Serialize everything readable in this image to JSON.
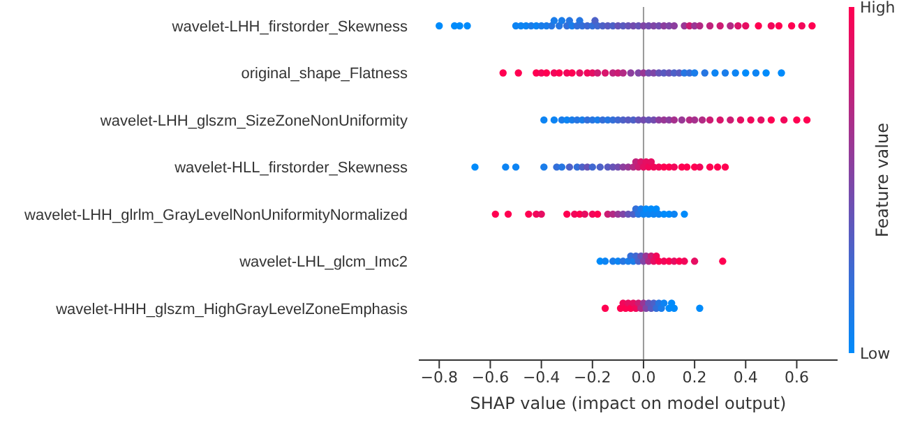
{
  "chart_data": {
    "type": "scatter",
    "orientation": "horizontal",
    "xlabel": "SHAP value (impact on model output)",
    "clabel": "Feature value",
    "categories": [
      "wavelet-LHH_firstorder_Skewness",
      "original_shape_Flatness",
      "wavelet-LHH_glszm_SizeZoneNonUniformity",
      "wavelet-HLL_firstorder_Skewness",
      "wavelet-LHH_glrlm_GrayLevelNonUniformityNormalized",
      "wavelet-LHL_glcm_Imc2",
      "wavelet-HHH_glszm_HighGrayLevelZoneEmphasis"
    ],
    "xlim": [
      -0.88,
      0.76
    ],
    "xticks": [
      {
        "value": -0.8,
        "label": "−0.8"
      },
      {
        "value": -0.6,
        "label": "−0.6"
      },
      {
        "value": -0.4,
        "label": "−0.4"
      },
      {
        "value": -0.2,
        "label": "−0.2"
      },
      {
        "value": 0,
        "label": "0.0"
      },
      0.2,
      0.4,
      0.6
    ],
    "clim": [
      0,
      1
    ],
    "cticks": [
      {
        "value": 0,
        "label": "Low"
      },
      {
        "value": 1,
        "label": "High"
      }
    ],
    "ref_lines": [
      {
        "axis": "x",
        "value": 0,
        "color": "#999999"
      }
    ],
    "series": [
      {
        "x": [
          "wavelet-LHH_firstorder_Skewness",
          "wavelet-LHH_firstorder_Skewness",
          "wavelet-LHH_firstorder_Skewness",
          "wavelet-LHH_firstorder_Skewness",
          "wavelet-LHH_firstorder_Skewness",
          "wavelet-LHH_firstorder_Skewness",
          "wavelet-LHH_firstorder_Skewness",
          "wavelet-LHH_firstorder_Skewness",
          "wavelet-LHH_firstorder_Skewness",
          "wavelet-LHH_firstorder_Skewness",
          "wavelet-LHH_firstorder_Skewness",
          "wavelet-LHH_firstorder_Skewness",
          "wavelet-LHH_firstorder_Skewness",
          "wavelet-LHH_firstorder_Skewness",
          "wavelet-LHH_firstorder_Skewness",
          "wavelet-LHH_firstorder_Skewness",
          "wavelet-LHH_firstorder_Skewness",
          "wavelet-LHH_firstorder_Skewness",
          "wavelet-LHH_firstorder_Skewness",
          "wavelet-LHH_firstorder_Skewness",
          "wavelet-LHH_firstorder_Skewness",
          "wavelet-LHH_firstorder_Skewness",
          "wavelet-LHH_firstorder_Skewness",
          "wavelet-LHH_firstorder_Skewness",
          "wavelet-LHH_firstorder_Skewness",
          "wavelet-LHH_firstorder_Skewness",
          "wavelet-LHH_firstorder_Skewness",
          "wavelet-LHH_firstorder_Skewness",
          "wavelet-LHH_firstorder_Skewness",
          "wavelet-LHH_firstorder_Skewness",
          "wavelet-LHH_firstorder_Skewness",
          "wavelet-LHH_firstorder_Skewness",
          "wavelet-LHH_firstorder_Skewness",
          "wavelet-LHH_firstorder_Skewness",
          "wavelet-LHH_firstorder_Skewness",
          "wavelet-LHH_firstorder_Skewness",
          "wavelet-LHH_firstorder_Skewness",
          "wavelet-LHH_firstorder_Skewness",
          "wavelet-LHH_firstorder_Skewness",
          "wavelet-LHH_firstorder_Skewness",
          "wavelet-LHH_firstorder_Skewness",
          "wavelet-LHH_firstorder_Skewness",
          "wavelet-LHH_firstorder_Skewness",
          "wavelet-LHH_firstorder_Skewness",
          "wavelet-LHH_firstorder_Skewness",
          "wavelet-LHH_firstorder_Skewness",
          "wavelet-LHH_firstorder_Skewness",
          "wavelet-LHH_firstorder_Skewness",
          "wavelet-LHH_firstorder_Skewness",
          "wavelet-LHH_firstorder_Skewness",
          "wavelet-LHH_firstorder_Skewness",
          "wavelet-LHH_firstorder_Skewness",
          "wavelet-LHH_firstorder_Skewness",
          "wavelet-LHH_firstorder_Skewness",
          "wavelet-LHH_firstorder_Skewness"
        ],
        "values": [
          -0.8,
          -0.74,
          -0.72,
          -0.69,
          -0.5,
          -0.48,
          -0.46,
          -0.44,
          -0.42,
          -0.4,
          -0.38,
          -0.36,
          -0.35,
          -0.33,
          -0.32,
          -0.3,
          -0.29,
          -0.28,
          -0.26,
          -0.25,
          -0.24,
          -0.22,
          -0.2,
          -0.19,
          -0.18,
          -0.16,
          -0.14,
          -0.12,
          -0.1,
          -0.08,
          -0.06,
          -0.04,
          -0.02,
          0,
          0.02,
          0.04,
          0.06,
          0.08,
          0.1,
          0.12,
          0.16,
          0.18,
          0.2,
          0.22,
          0.26,
          0.3,
          0.34,
          0.37,
          0.4,
          0.45,
          0.5,
          0.53,
          0.58,
          0.62,
          0.66
        ],
        "colors": [
          "#008bfb",
          "#008bfb",
          "#008bfb",
          "#008bfb",
          "#0d84f3",
          "#0d84f3",
          "#0d84f3",
          "#1a7dea",
          "#0d84f3",
          "#1a7dea",
          "#1a7dea",
          "#2676e2",
          "#1a7dea",
          "#2676e2",
          "#1a7dea",
          "#336fd9",
          "#2676e2",
          "#1a7dea",
          "#336fd9",
          "#2676e2",
          "#336fd9",
          "#4068d1",
          "#336fd9",
          "#4d61c8",
          "#4068d1",
          "#4d61c8",
          "#595ac0",
          "#4d61c8",
          "#6653b7",
          "#595ac0",
          "#6653b7",
          "#734caf",
          "#6653b7",
          "#8046a6",
          "#734caf",
          "#8046a6",
          "#734caf",
          "#8c3e9e",
          "#8046a6",
          "#8c3e9e",
          "#993795",
          "#cc1c73",
          "#993795",
          "#b32a84",
          "#bf237c",
          "#cc1c73",
          "#b32a84",
          "#d9156b",
          "#e60e62",
          "#ff0051",
          "#f2075a",
          "#ff0051",
          "#ff0051",
          "#f2075a",
          "#ff0051"
        ]
      },
      {
        "x": [
          "original_shape_Flatness",
          "original_shape_Flatness",
          "original_shape_Flatness",
          "original_shape_Flatness",
          "original_shape_Flatness",
          "original_shape_Flatness",
          "original_shape_Flatness",
          "original_shape_Flatness",
          "original_shape_Flatness",
          "original_shape_Flatness",
          "original_shape_Flatness",
          "original_shape_Flatness",
          "original_shape_Flatness",
          "original_shape_Flatness",
          "original_shape_Flatness",
          "original_shape_Flatness",
          "original_shape_Flatness",
          "original_shape_Flatness",
          "original_shape_Flatness",
          "original_shape_Flatness",
          "original_shape_Flatness",
          "original_shape_Flatness",
          "original_shape_Flatness",
          "original_shape_Flatness",
          "original_shape_Flatness",
          "original_shape_Flatness",
          "original_shape_Flatness",
          "original_shape_Flatness",
          "original_shape_Flatness",
          "original_shape_Flatness",
          "original_shape_Flatness",
          "original_shape_Flatness",
          "original_shape_Flatness",
          "original_shape_Flatness",
          "original_shape_Flatness",
          "original_shape_Flatness",
          "original_shape_Flatness",
          "original_shape_Flatness"
        ],
        "values": [
          -0.55,
          -0.49,
          -0.42,
          -0.4,
          -0.38,
          -0.35,
          -0.33,
          -0.3,
          -0.28,
          -0.25,
          -0.22,
          -0.2,
          -0.18,
          -0.15,
          -0.12,
          -0.1,
          -0.08,
          -0.05,
          -0.02,
          0,
          0.02,
          0.04,
          0.06,
          0.08,
          0.1,
          0.12,
          0.14,
          0.16,
          0.18,
          0.2,
          0.24,
          0.28,
          0.32,
          0.36,
          0.4,
          0.44,
          0.48,
          0.54
        ],
        "colors": [
          "#ff0051",
          "#ff0051",
          "#ff0051",
          "#f2075a",
          "#ff0051",
          "#f2075a",
          "#ff0051",
          "#f2075a",
          "#ff0051",
          "#e60e62",
          "#f2075a",
          "#e60e62",
          "#cc1c73",
          "#d9156b",
          "#bf237c",
          "#cc1c73",
          "#b32a84",
          "#8c3e9e",
          "#8046a6",
          "#993795",
          "#734caf",
          "#8046a6",
          "#6653b7",
          "#595ac0",
          "#6653b7",
          "#4d61c8",
          "#595ac0",
          "#2676e2",
          "#336fd9",
          "#1a7dea",
          "#2676e2",
          "#0d84f3",
          "#1a7dea",
          "#0d84f3",
          "#008bfb",
          "#0d84f3",
          "#008bfb",
          "#008bfb"
        ]
      },
      {
        "x": [
          "wavelet-LHH_glszm_SizeZoneNonUniformity",
          "wavelet-LHH_glszm_SizeZoneNonUniformity",
          "wavelet-LHH_glszm_SizeZoneNonUniformity",
          "wavelet-LHH_glszm_SizeZoneNonUniformity",
          "wavelet-LHH_glszm_SizeZoneNonUniformity",
          "wavelet-LHH_glszm_SizeZoneNonUniformity",
          "wavelet-LHH_glszm_SizeZoneNonUniformity",
          "wavelet-LHH_glszm_SizeZoneNonUniformity",
          "wavelet-LHH_glszm_SizeZoneNonUniformity",
          "wavelet-LHH_glszm_SizeZoneNonUniformity",
          "wavelet-LHH_glszm_SizeZoneNonUniformity",
          "wavelet-LHH_glszm_SizeZoneNonUniformity",
          "wavelet-LHH_glszm_SizeZoneNonUniformity",
          "wavelet-LHH_glszm_SizeZoneNonUniformity",
          "wavelet-LHH_glszm_SizeZoneNonUniformity",
          "wavelet-LHH_glszm_SizeZoneNonUniformity",
          "wavelet-LHH_glszm_SizeZoneNonUniformity",
          "wavelet-LHH_glszm_SizeZoneNonUniformity",
          "wavelet-LHH_glszm_SizeZoneNonUniformity",
          "wavelet-LHH_glszm_SizeZoneNonUniformity",
          "wavelet-LHH_glszm_SizeZoneNonUniformity",
          "wavelet-LHH_glszm_SizeZoneNonUniformity",
          "wavelet-LHH_glszm_SizeZoneNonUniformity",
          "wavelet-LHH_glszm_SizeZoneNonUniformity",
          "wavelet-LHH_glszm_SizeZoneNonUniformity",
          "wavelet-LHH_glszm_SizeZoneNonUniformity",
          "wavelet-LHH_glszm_SizeZoneNonUniformity",
          "wavelet-LHH_glszm_SizeZoneNonUniformity",
          "wavelet-LHH_glszm_SizeZoneNonUniformity",
          "wavelet-LHH_glszm_SizeZoneNonUniformity",
          "wavelet-LHH_glszm_SizeZoneNonUniformity",
          "wavelet-LHH_glszm_SizeZoneNonUniformity",
          "wavelet-LHH_glszm_SizeZoneNonUniformity",
          "wavelet-LHH_glszm_SizeZoneNonUniformity",
          "wavelet-LHH_glszm_SizeZoneNonUniformity",
          "wavelet-LHH_glszm_SizeZoneNonUniformity",
          "wavelet-LHH_glszm_SizeZoneNonUniformity",
          "wavelet-LHH_glszm_SizeZoneNonUniformity",
          "wavelet-LHH_glszm_SizeZoneNonUniformity"
        ],
        "values": [
          -0.39,
          -0.35,
          -0.32,
          -0.3,
          -0.28,
          -0.26,
          -0.24,
          -0.22,
          -0.2,
          -0.18,
          -0.16,
          -0.14,
          -0.12,
          -0.1,
          -0.08,
          -0.06,
          -0.04,
          -0.02,
          0,
          0.02,
          0.04,
          0.06,
          0.08,
          0.1,
          0.12,
          0.15,
          0.18,
          0.2,
          0.23,
          0.26,
          0.3,
          0.34,
          0.38,
          0.42,
          0.46,
          0.5,
          0.55,
          0.6,
          0.64
        ],
        "colors": [
          "#0d84f3",
          "#0d84f3",
          "#1a7dea",
          "#0d84f3",
          "#1a7dea",
          "#2676e2",
          "#1a7dea",
          "#336fd9",
          "#2676e2",
          "#1a7dea",
          "#336fd9",
          "#2676e2",
          "#336fd9",
          "#4068d1",
          "#4d61c8",
          "#595ac0",
          "#4d61c8",
          "#6653b7",
          "#734caf",
          "#6653b7",
          "#734caf",
          "#8c3e9e",
          "#993795",
          "#8c3e9e",
          "#a6308d",
          "#993795",
          "#b32a84",
          "#a6308d",
          "#b32a84",
          "#cc1c73",
          "#d9156b",
          "#cc1c73",
          "#e60e62",
          "#f2075a",
          "#e60e62",
          "#ff0051",
          "#f2075a",
          "#ff0051",
          "#ff0051"
        ]
      },
      {
        "x": [
          "wavelet-HLL_firstorder_Skewness",
          "wavelet-HLL_firstorder_Skewness",
          "wavelet-HLL_firstorder_Skewness",
          "wavelet-HLL_firstorder_Skewness",
          "wavelet-HLL_firstorder_Skewness",
          "wavelet-HLL_firstorder_Skewness",
          "wavelet-HLL_firstorder_Skewness",
          "wavelet-HLL_firstorder_Skewness",
          "wavelet-HLL_firstorder_Skewness",
          "wavelet-HLL_firstorder_Skewness",
          "wavelet-HLL_firstorder_Skewness",
          "wavelet-HLL_firstorder_Skewness",
          "wavelet-HLL_firstorder_Skewness",
          "wavelet-HLL_firstorder_Skewness",
          "wavelet-HLL_firstorder_Skewness",
          "wavelet-HLL_firstorder_Skewness",
          "wavelet-HLL_firstorder_Skewness",
          "wavelet-HLL_firstorder_Skewness",
          "wavelet-HLL_firstorder_Skewness",
          "wavelet-HLL_firstorder_Skewness",
          "wavelet-HLL_firstorder_Skewness",
          "wavelet-HLL_firstorder_Skewness",
          "wavelet-HLL_firstorder_Skewness",
          "wavelet-HLL_firstorder_Skewness",
          "wavelet-HLL_firstorder_Skewness",
          "wavelet-HLL_firstorder_Skewness",
          "wavelet-HLL_firstorder_Skewness",
          "wavelet-HLL_firstorder_Skewness",
          "wavelet-HLL_firstorder_Skewness",
          "wavelet-HLL_firstorder_Skewness",
          "wavelet-HLL_firstorder_Skewness",
          "wavelet-HLL_firstorder_Skewness",
          "wavelet-HLL_firstorder_Skewness",
          "wavelet-HLL_firstorder_Skewness",
          "wavelet-HLL_firstorder_Skewness",
          "wavelet-HLL_firstorder_Skewness",
          "wavelet-HLL_firstorder_Skewness"
        ],
        "values": [
          -0.66,
          -0.54,
          -0.5,
          -0.39,
          -0.34,
          -0.32,
          -0.29,
          -0.26,
          -0.24,
          -0.22,
          -0.2,
          -0.17,
          -0.14,
          -0.12,
          -0.1,
          -0.08,
          -0.06,
          -0.04,
          -0.03,
          -0.02,
          -0.01,
          0,
          0.01,
          0.02,
          0.03,
          0.04,
          0.06,
          0.08,
          0.1,
          0.12,
          0.15,
          0.17,
          0.2,
          0.22,
          0.26,
          0.29,
          0.32
        ],
        "colors": [
          "#008bfb",
          "#0d84f3",
          "#0d84f3",
          "#1a7dea",
          "#336fd9",
          "#2676e2",
          "#4d61c8",
          "#336fd9",
          "#4d61c8",
          "#6653b7",
          "#4068d1",
          "#4d61c8",
          "#595ac0",
          "#6653b7",
          "#734caf",
          "#8c3e9e",
          "#993795",
          "#b32a84",
          "#bf237c",
          "#cc1c73",
          "#d9156b",
          "#e60e62",
          "#e60e62",
          "#f2075a",
          "#e60e62",
          "#f2075a",
          "#f2075a",
          "#ff0051",
          "#ff0051",
          "#f2075a",
          "#ff0051",
          "#ff0051",
          "#ff0051",
          "#f2075a",
          "#ff0051",
          "#ff0051",
          "#ff0051"
        ]
      },
      {
        "x": [
          "wavelet-LHH_glrlm_GrayLevelNonUniformityNormalized",
          "wavelet-LHH_glrlm_GrayLevelNonUniformityNormalized",
          "wavelet-LHH_glrlm_GrayLevelNonUniformityNormalized",
          "wavelet-LHH_glrlm_GrayLevelNonUniformityNormalized",
          "wavelet-LHH_glrlm_GrayLevelNonUniformityNormalized",
          "wavelet-LHH_glrlm_GrayLevelNonUniformityNormalized",
          "wavelet-LHH_glrlm_GrayLevelNonUniformityNormalized",
          "wavelet-LHH_glrlm_GrayLevelNonUniformityNormalized",
          "wavelet-LHH_glrlm_GrayLevelNonUniformityNormalized",
          "wavelet-LHH_glrlm_GrayLevelNonUniformityNormalized",
          "wavelet-LHH_glrlm_GrayLevelNonUniformityNormalized",
          "wavelet-LHH_glrlm_GrayLevelNonUniformityNormalized",
          "wavelet-LHH_glrlm_GrayLevelNonUniformityNormalized",
          "wavelet-LHH_glrlm_GrayLevelNonUniformityNormalized",
          "wavelet-LHH_glrlm_GrayLevelNonUniformityNormalized",
          "wavelet-LHH_glrlm_GrayLevelNonUniformityNormalized",
          "wavelet-LHH_glrlm_GrayLevelNonUniformityNormalized",
          "wavelet-LHH_glrlm_GrayLevelNonUniformityNormalized",
          "wavelet-LHH_glrlm_GrayLevelNonUniformityNormalized",
          "wavelet-LHH_glrlm_GrayLevelNonUniformityNormalized",
          "wavelet-LHH_glrlm_GrayLevelNonUniformityNormalized",
          "wavelet-LHH_glrlm_GrayLevelNonUniformityNormalized",
          "wavelet-LHH_glrlm_GrayLevelNonUniformityNormalized",
          "wavelet-LHH_glrlm_GrayLevelNonUniformityNormalized",
          "wavelet-LHH_glrlm_GrayLevelNonUniformityNormalized",
          "wavelet-LHH_glrlm_GrayLevelNonUniformityNormalized",
          "wavelet-LHH_glrlm_GrayLevelNonUniformityNormalized",
          "wavelet-LHH_glrlm_GrayLevelNonUniformityNormalized",
          "wavelet-LHH_glrlm_GrayLevelNonUniformityNormalized",
          "wavelet-LHH_glrlm_GrayLevelNonUniformityNormalized",
          "wavelet-LHH_glrlm_GrayLevelNonUniformityNormalized"
        ],
        "values": [
          -0.58,
          -0.53,
          -0.45,
          -0.42,
          -0.4,
          -0.3,
          -0.27,
          -0.25,
          -0.23,
          -0.2,
          -0.18,
          -0.14,
          -0.12,
          -0.1,
          -0.08,
          -0.06,
          -0.04,
          -0.03,
          -0.02,
          -0.01,
          0,
          0.01,
          0.02,
          0.03,
          0.04,
          0.05,
          0.06,
          0.08,
          0.1,
          0.12,
          0.16
        ],
        "colors": [
          "#ff0051",
          "#ff0051",
          "#ff0051",
          "#f2075a",
          "#e60e62",
          "#ff0051",
          "#f2075a",
          "#ff0051",
          "#e60e62",
          "#f2075a",
          "#ff0051",
          "#cc1c73",
          "#b32a84",
          "#993795",
          "#8046a6",
          "#6653b7",
          "#4d61c8",
          "#336fd9",
          "#2676e2",
          "#1a7dea",
          "#0d84f3",
          "#008bfb",
          "#0d84f3",
          "#008bfb",
          "#0d84f3",
          "#008bfb",
          "#0d84f3",
          "#008bfb",
          "#008bfb",
          "#0d84f3",
          "#008bfb"
        ]
      },
      {
        "x": [
          "wavelet-LHL_glcm_Imc2",
          "wavelet-LHL_glcm_Imc2",
          "wavelet-LHL_glcm_Imc2",
          "wavelet-LHL_glcm_Imc2",
          "wavelet-LHL_glcm_Imc2",
          "wavelet-LHL_glcm_Imc2",
          "wavelet-LHL_glcm_Imc2",
          "wavelet-LHL_glcm_Imc2",
          "wavelet-LHL_glcm_Imc2",
          "wavelet-LHL_glcm_Imc2",
          "wavelet-LHL_glcm_Imc2",
          "wavelet-LHL_glcm_Imc2",
          "wavelet-LHL_glcm_Imc2",
          "wavelet-LHL_glcm_Imc2",
          "wavelet-LHL_glcm_Imc2",
          "wavelet-LHL_glcm_Imc2",
          "wavelet-LHL_glcm_Imc2",
          "wavelet-LHL_glcm_Imc2",
          "wavelet-LHL_glcm_Imc2",
          "wavelet-LHL_glcm_Imc2",
          "wavelet-LHL_glcm_Imc2",
          "wavelet-LHL_glcm_Imc2",
          "wavelet-LHL_glcm_Imc2",
          "wavelet-LHL_glcm_Imc2",
          "wavelet-LHL_glcm_Imc2"
        ],
        "values": [
          -0.17,
          -0.15,
          -0.12,
          -0.1,
          -0.08,
          -0.06,
          -0.05,
          -0.04,
          -0.03,
          -0.02,
          -0.01,
          0,
          0.01,
          0.02,
          0.03,
          0.04,
          0.05,
          0.06,
          0.08,
          0.1,
          0.12,
          0.14,
          0.16,
          0.2,
          0.31
        ],
        "colors": [
          "#008bfb",
          "#0d84f3",
          "#1a7dea",
          "#0d84f3",
          "#2676e2",
          "#1a7dea",
          "#336fd9",
          "#1a7dea",
          "#4068d1",
          "#4d61c8",
          "#6653b7",
          "#8046a6",
          "#993795",
          "#b32a84",
          "#cc1c73",
          "#e60e62",
          "#f2075a",
          "#ff0051",
          "#f2075a",
          "#ff0051",
          "#e60e62",
          "#ff0051",
          "#f2075a",
          "#e60e62",
          "#ff0051"
        ]
      },
      {
        "x": [
          "wavelet-HHH_glszm_HighGrayLevelZoneEmphasis",
          "wavelet-HHH_glszm_HighGrayLevelZoneEmphasis",
          "wavelet-HHH_glszm_HighGrayLevelZoneEmphasis",
          "wavelet-HHH_glszm_HighGrayLevelZoneEmphasis",
          "wavelet-HHH_glszm_HighGrayLevelZoneEmphasis",
          "wavelet-HHH_glszm_HighGrayLevelZoneEmphasis",
          "wavelet-HHH_glszm_HighGrayLevelZoneEmphasis",
          "wavelet-HHH_glszm_HighGrayLevelZoneEmphasis",
          "wavelet-HHH_glszm_HighGrayLevelZoneEmphasis",
          "wavelet-HHH_glszm_HighGrayLevelZoneEmphasis",
          "wavelet-HHH_glszm_HighGrayLevelZoneEmphasis",
          "wavelet-HHH_glszm_HighGrayLevelZoneEmphasis",
          "wavelet-HHH_glszm_HighGrayLevelZoneEmphasis",
          "wavelet-HHH_glszm_HighGrayLevelZoneEmphasis",
          "wavelet-HHH_glszm_HighGrayLevelZoneEmphasis",
          "wavelet-HHH_glszm_HighGrayLevelZoneEmphasis",
          "wavelet-HHH_glszm_HighGrayLevelZoneEmphasis",
          "wavelet-HHH_glszm_HighGrayLevelZoneEmphasis",
          "wavelet-HHH_glszm_HighGrayLevelZoneEmphasis",
          "wavelet-HHH_glszm_HighGrayLevelZoneEmphasis",
          "wavelet-HHH_glszm_HighGrayLevelZoneEmphasis",
          "wavelet-HHH_glszm_HighGrayLevelZoneEmphasis",
          "wavelet-HHH_glszm_HighGrayLevelZoneEmphasis"
        ],
        "values": [
          -0.15,
          -0.09,
          -0.08,
          -0.07,
          -0.06,
          -0.05,
          -0.04,
          -0.03,
          -0.02,
          -0.01,
          0,
          0.01,
          0.02,
          0.03,
          0.04,
          0.05,
          0.06,
          0.07,
          0.08,
          0.1,
          0.11,
          0.12,
          0.22
        ],
        "colors": [
          "#ff0051",
          "#ff0051",
          "#f2075a",
          "#ff0051",
          "#e60e62",
          "#ff0051",
          "#e60e62",
          "#f2075a",
          "#cc1c73",
          "#b32a84",
          "#993795",
          "#8046a6",
          "#6653b7",
          "#595ac0",
          "#4d61c8",
          "#336fd9",
          "#2676e2",
          "#1a7dea",
          "#0d84f3",
          "#008bfb",
          "#008bfb",
          "#008bfb",
          "#008bfb"
        ]
      }
    ]
  }
}
